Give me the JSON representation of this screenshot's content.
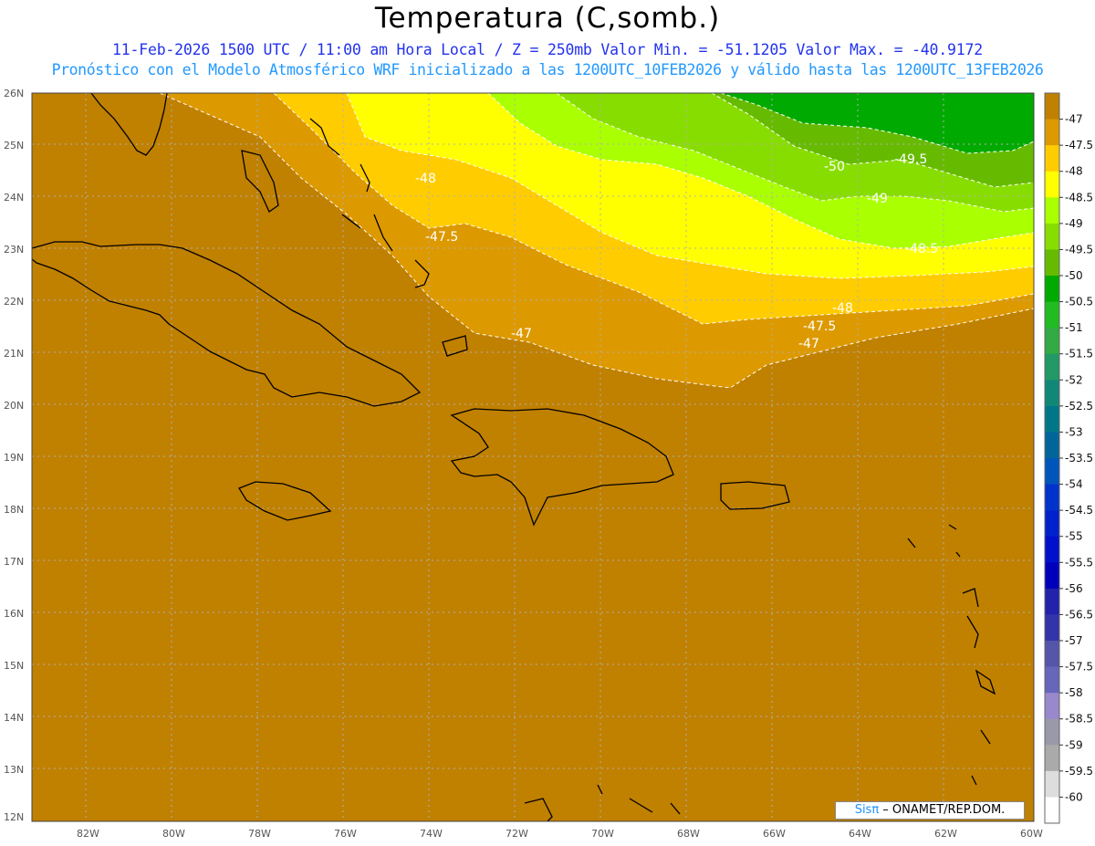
{
  "header": {
    "title": "Temperatura (C,somb.)",
    "subtitle1": "11-Feb-2026  1500 UTC / 11:00 am Hora Local / Z = 250mb  Valor Min. = -51.1205  Valor Max. = -40.9172",
    "subtitle2": "Pronóstico con el Modelo Atmosférico WRF inicializado a las 1200UTC_10FEB2026 y válido hasta las  1200UTC_13FEB2026"
  },
  "map": {
    "lat_labels": [
      "26N",
      "25N",
      "24N",
      "23N",
      "22N",
      "21N",
      "20N",
      "19N",
      "18N",
      "17N",
      "16N",
      "15N",
      "14N",
      "13N",
      "12N"
    ],
    "lon_labels": [
      "82W",
      "80W",
      "78W",
      "76W",
      "74W",
      "72W",
      "70W",
      "68W",
      "66W",
      "64W",
      "62W",
      "60W"
    ],
    "contour_labels": [
      "-48",
      "-47.5",
      "-47",
      "-50",
      "-49.5",
      "-49",
      "-48.5",
      "-48",
      "-47.5",
      "-47"
    ],
    "colors": {
      "-47": "#c08000",
      "-47.5": "#dd9900",
      "-48": "#ffcc00",
      "-48.5": "#ffff00",
      "-49": "#aaff00",
      "-49.5": "#88dd00",
      "-50": "#66bb00",
      "-50.5": "#00aa00"
    }
  },
  "colorbar": {
    "labels": [
      "-47",
      "-47.5",
      "-48",
      "-48.5",
      "-49",
      "-49.5",
      "-50",
      "-50.5",
      "-51",
      "-51.5",
      "-52",
      "-52.5",
      "-53",
      "-53.5",
      "-54",
      "-54.5",
      "-55",
      "-55.5",
      "-56",
      "-56.5",
      "-57",
      "-57.5",
      "-58",
      "-58.5",
      "-59",
      "-59.5",
      "-60"
    ],
    "colors": [
      "#c08000",
      "#dd9900",
      "#ffcc00",
      "#ffff00",
      "#aaff00",
      "#88dd00",
      "#66bb00",
      "#00aa00",
      "#22bb22",
      "#33aa44",
      "#229966",
      "#118877",
      "#007788",
      "#006699",
      "#0055bb",
      "#0033cc",
      "#0022cc",
      "#0011cc",
      "#0000bb",
      "#2222aa",
      "#3333aa",
      "#5555aa",
      "#6666bb",
      "#9988cc",
      "#9999aa",
      "#aaaaaa",
      "#dddddd",
      "#ffffff"
    ]
  },
  "credit": {
    "sis": "Sisπ",
    "text": " – ONAMET/REP.DOM."
  }
}
